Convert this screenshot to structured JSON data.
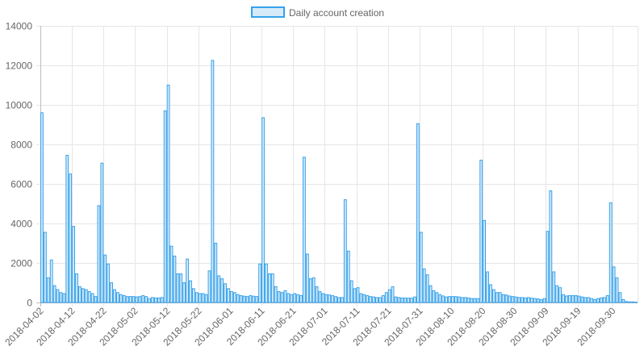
{
  "chart_data": {
    "type": "bar",
    "title": "",
    "xlabel": "",
    "ylabel": "",
    "ylim": [
      0,
      14000
    ],
    "y_ticks": [
      0,
      2000,
      4000,
      6000,
      8000,
      10000,
      12000,
      14000
    ],
    "grid": true,
    "legend_position": "top",
    "colors": {
      "bar_fill": "#d6eaf8",
      "bar_stroke": "#36a2eb",
      "grid": "#e6e6e6",
      "axis_text": "#666666"
    },
    "x_tick_labels": [
      "2018-04-02",
      "2018-04-12",
      "2018-04-22",
      "2018-05-02",
      "2018-05-12",
      "2018-05-22",
      "2018-06-01",
      "2018-06-11",
      "2018-06-21",
      "2018-07-01",
      "2018-07-11",
      "2018-07-21",
      "2018-07-31",
      "2018-08-10",
      "2018-08-20",
      "2018-08-30",
      "2018-09-09",
      "2018-09-19",
      "2018-09-30"
    ],
    "series": [
      {
        "name": "Daily account creation",
        "start_date": "2018-04-02",
        "values": [
          9600,
          3550,
          1250,
          2150,
          850,
          650,
          500,
          450,
          7450,
          6500,
          3850,
          1450,
          800,
          700,
          650,
          550,
          450,
          300,
          4900,
          7050,
          2400,
          1950,
          1000,
          650,
          500,
          400,
          350,
          300,
          300,
          300,
          280,
          300,
          350,
          300,
          200,
          250,
          230,
          230,
          250,
          9700,
          11000,
          2850,
          2350,
          1450,
          1450,
          1000,
          2200,
          1100,
          700,
          500,
          450,
          450,
          400,
          1600,
          12250,
          3000,
          1350,
          1200,
          950,
          700,
          550,
          500,
          400,
          350,
          320,
          300,
          350,
          320,
          300,
          1950,
          9350,
          1950,
          1450,
          1450,
          800,
          550,
          500,
          600,
          450,
          400,
          450,
          400,
          350,
          7350,
          2450,
          1200,
          1250,
          800,
          550,
          450,
          400,
          380,
          350,
          300,
          250,
          250,
          5200,
          2600,
          1100,
          700,
          750,
          450,
          400,
          350,
          300,
          280,
          250,
          250,
          350,
          500,
          650,
          800,
          280,
          250,
          230,
          230,
          220,
          220,
          280,
          9050,
          3550,
          1700,
          1400,
          850,
          600,
          500,
          400,
          330,
          280,
          300,
          300,
          300,
          280,
          250,
          250,
          230,
          200,
          200,
          200,
          7200,
          4150,
          1550,
          900,
          650,
          500,
          500,
          400,
          380,
          330,
          300,
          280,
          250,
          250,
          230,
          250,
          220,
          200,
          180,
          150,
          200,
          3600,
          5650,
          1550,
          850,
          750,
          400,
          330,
          350,
          350,
          350,
          320,
          280,
          250,
          250,
          200,
          150,
          200,
          230,
          250,
          350,
          5050,
          1800,
          1250,
          500,
          150,
          50,
          30,
          30,
          20
        ]
      }
    ]
  }
}
